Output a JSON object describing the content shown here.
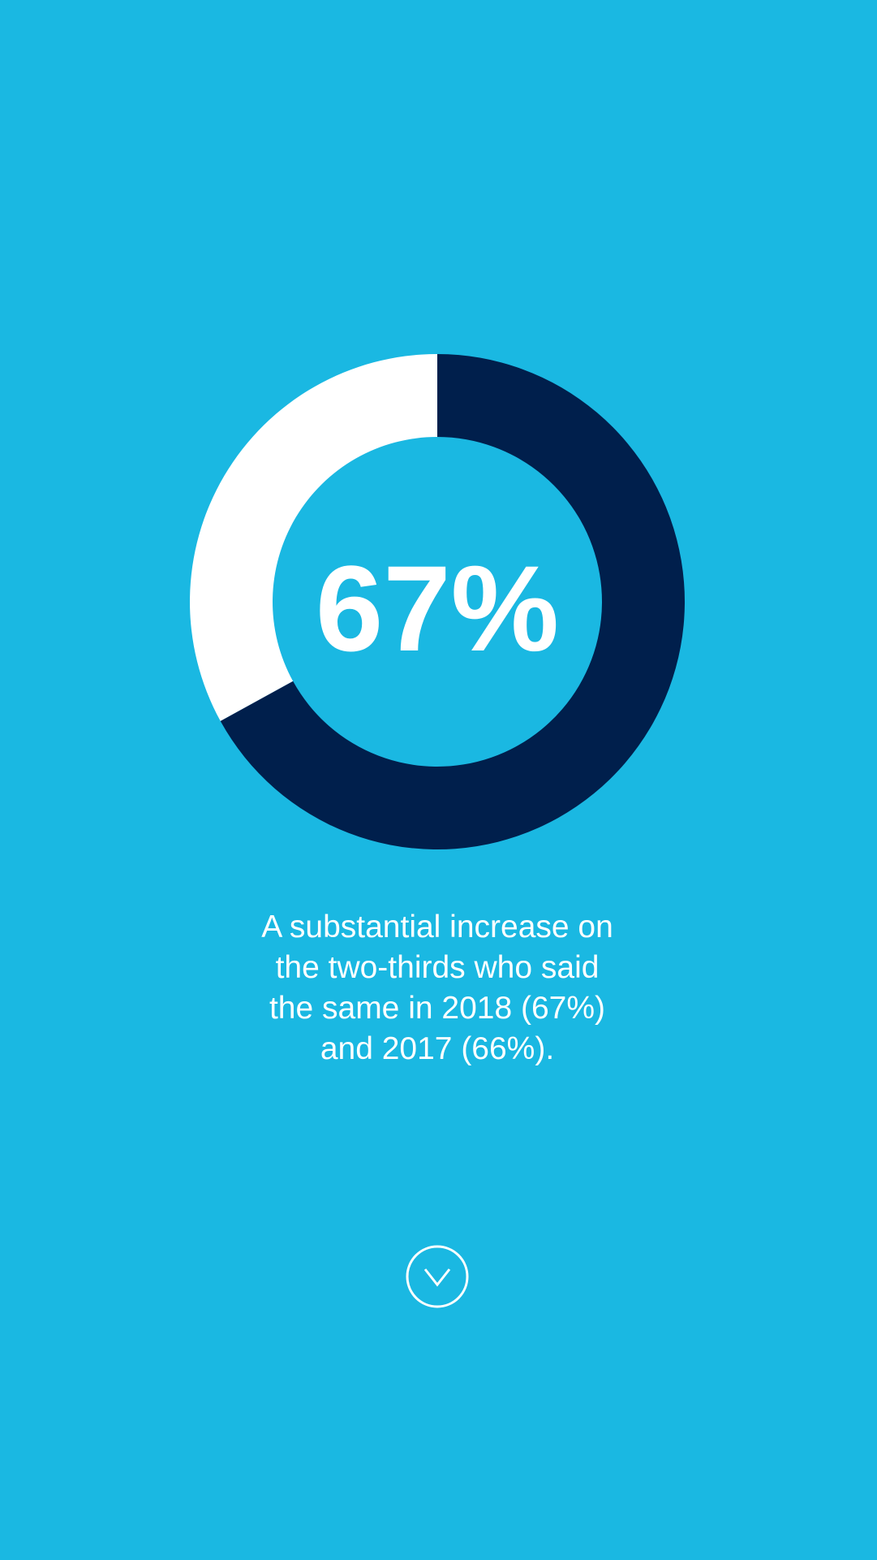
{
  "chart_data": {
    "type": "donut",
    "values": [
      67,
      33
    ],
    "value_labels": [
      "67%",
      null
    ],
    "colors": [
      "#001f4c",
      "#ffffff"
    ],
    "caption": [
      "A substantial increase on",
      "the two-thirds who said",
      "the same in 2018 (67%)",
      "and 2017 (66%)."
    ]
  }
}
